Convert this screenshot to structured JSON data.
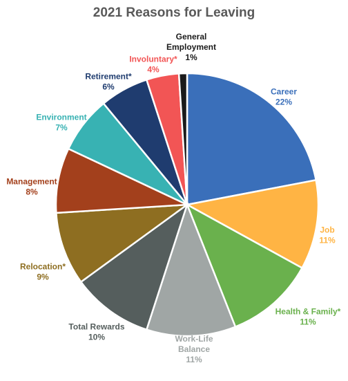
{
  "chart_data": {
    "type": "pie",
    "title": "2021 Reasons for Leaving",
    "slices": [
      {
        "name": "Career",
        "value": 22,
        "label": "22%",
        "color": "#3a6fba",
        "label_lines": [
          "Career",
          "22%"
        ]
      },
      {
        "name": "Job",
        "value": 11,
        "label": "11%",
        "color": "#ffb444",
        "label_lines": [
          "Job",
          "11%"
        ]
      },
      {
        "name": "Health & Family*",
        "value": 11,
        "label": "11%",
        "color": "#6ab14d",
        "label_lines": [
          "Health & Family*",
          "11%"
        ]
      },
      {
        "name": "Work-Life Balance",
        "value": 11,
        "label": "11%",
        "color": "#a0a6a5",
        "label_lines": [
          "Work-Life",
          "Balance",
          "11%"
        ]
      },
      {
        "name": "Total Rewards",
        "value": 10,
        "label": "10%",
        "color": "#555e5d",
        "label_lines": [
          "Total Rewards",
          "10%"
        ]
      },
      {
        "name": "Relocation*",
        "value": 9,
        "label": "9%",
        "color": "#8e6e21",
        "label_lines": [
          "Relocation*",
          "9%"
        ]
      },
      {
        "name": "Management",
        "value": 8,
        "label": "8%",
        "color": "#a3401c",
        "label_lines": [
          "Management",
          "8%"
        ]
      },
      {
        "name": "Environment",
        "value": 7,
        "label": "7%",
        "color": "#38b2b3",
        "label_lines": [
          "Environment",
          "7%"
        ]
      },
      {
        "name": "Retirement*",
        "value": 6,
        "label": "6%",
        "color": "#1f3c6f",
        "label_lines": [
          "Retirement*",
          "6%"
        ]
      },
      {
        "name": "Involuntary*",
        "value": 4,
        "label": "4%",
        "color": "#f25555",
        "label_lines": [
          "Involuntary*",
          "4%"
        ]
      },
      {
        "name": "General Employment",
        "value": 1,
        "label": "1%",
        "color": "#1a1a1a",
        "label_lines": [
          "General",
          "Employment",
          "1%"
        ]
      }
    ]
  }
}
